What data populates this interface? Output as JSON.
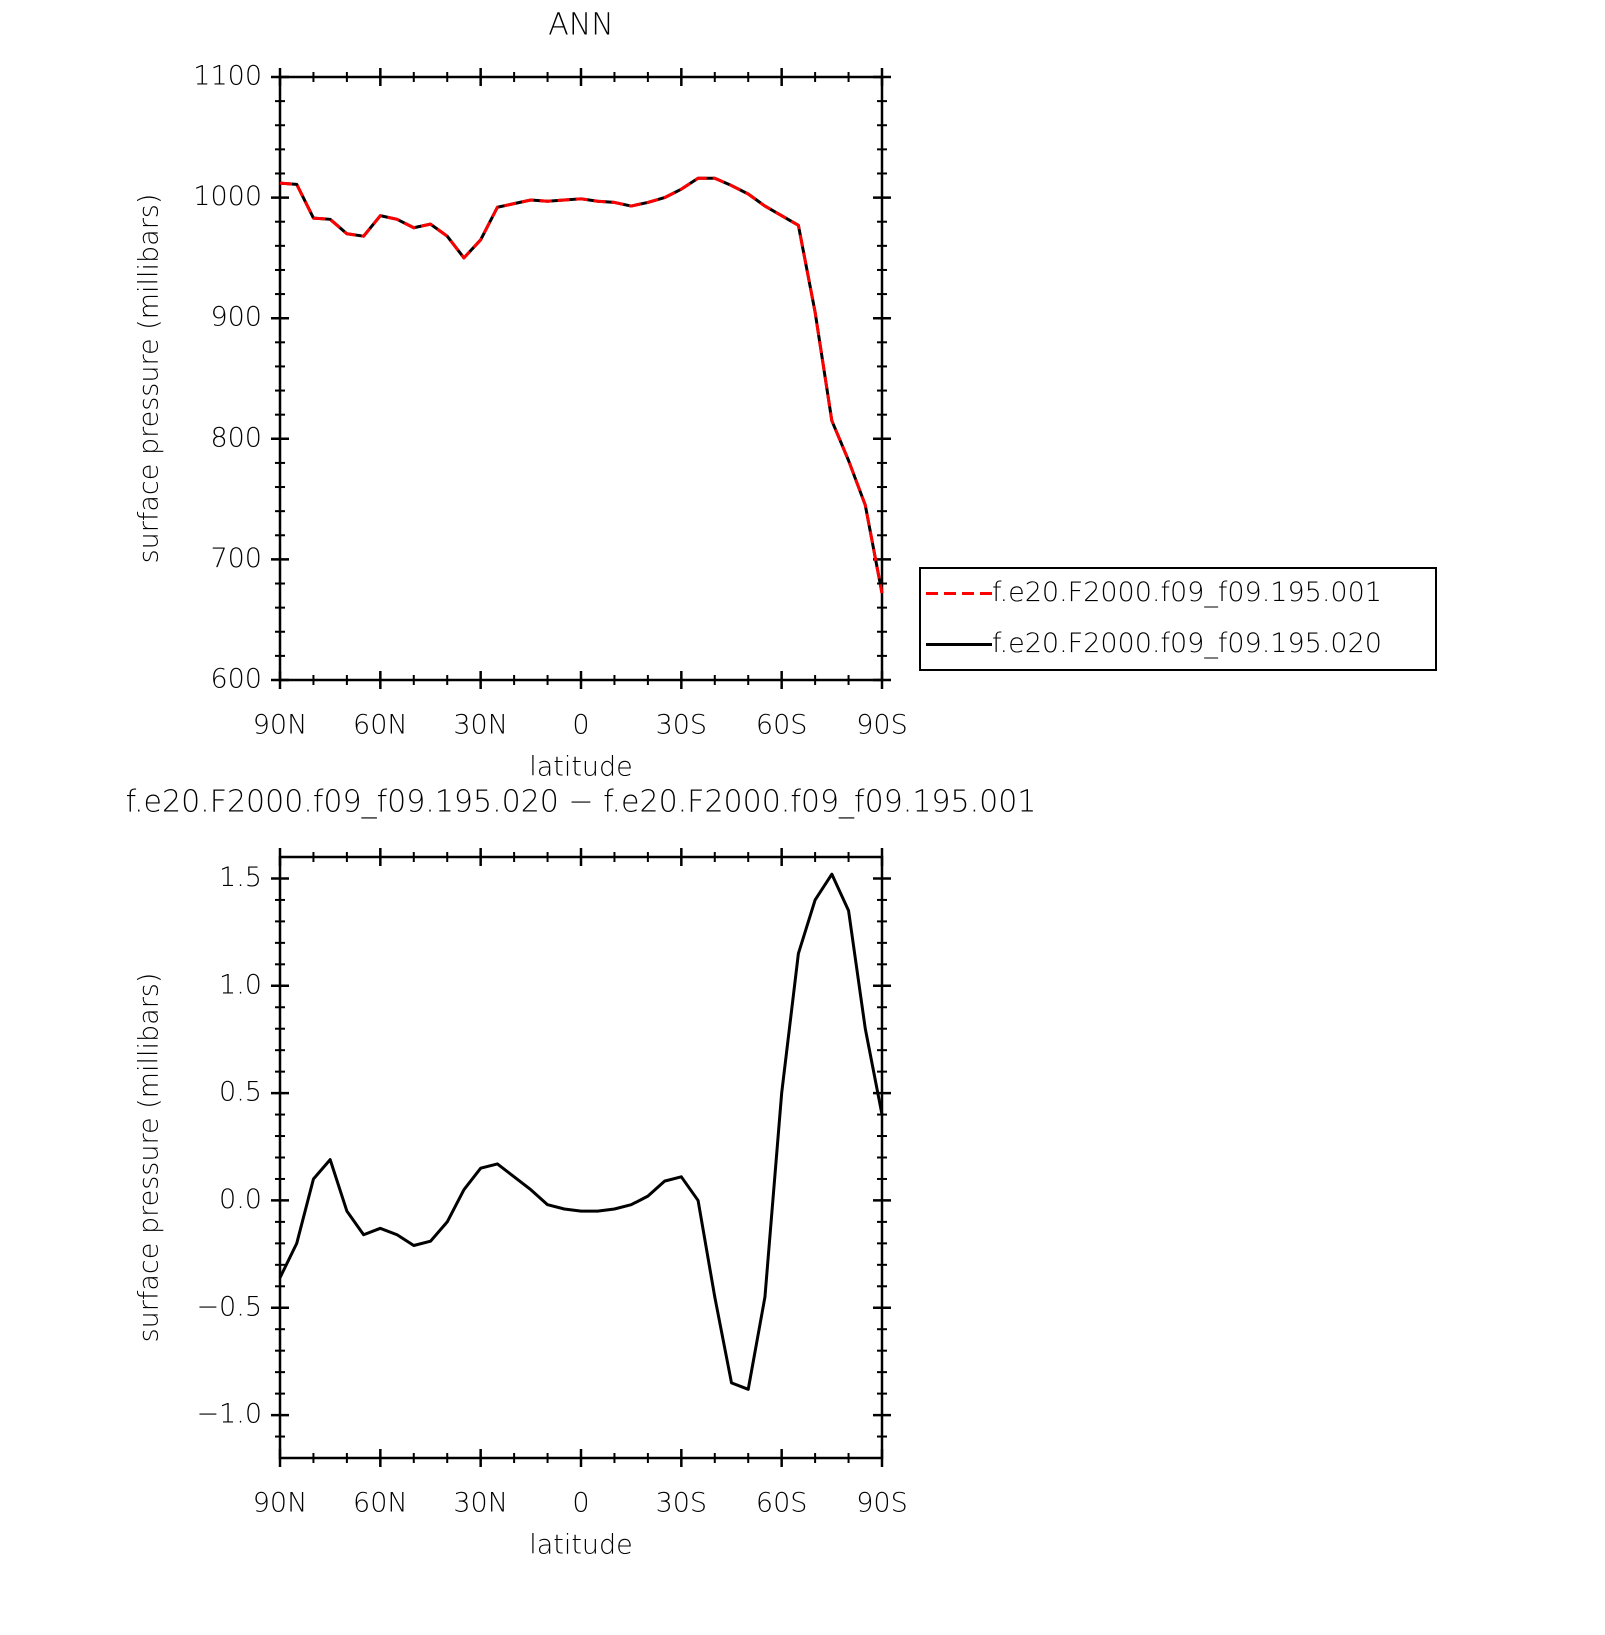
{
  "chart_data": [
    {
      "type": "line",
      "title": "ANN",
      "xlabel": "latitude",
      "ylabel": "surface pressure (millibars)",
      "x": [
        90,
        85,
        80,
        75,
        70,
        65,
        60,
        55,
        50,
        45,
        40,
        35,
        30,
        25,
        20,
        15,
        10,
        5,
        0,
        -5,
        -10,
        -15,
        -20,
        -25,
        -30,
        -35,
        -40,
        -45,
        -50,
        -55,
        -60,
        -65,
        -70,
        -75,
        -80,
        -85,
        -90
      ],
      "series": [
        {
          "name": "f.e20.F2000.f09_f09.195.001",
          "color": "#ff0000",
          "linestyle": "dashed",
          "values": [
            1012,
            1011,
            983,
            982,
            970,
            968,
            985,
            982,
            975,
            978,
            968,
            950,
            965,
            992,
            995,
            998,
            997,
            998,
            999,
            997,
            996,
            993,
            996,
            1000,
            1007,
            1016,
            1016,
            1010,
            1003,
            993,
            985,
            977,
            905,
            815,
            782,
            745,
            672
          ]
        },
        {
          "name": "f.e20.F2000.f09_f09.195.020",
          "color": "#000000",
          "linestyle": "solid",
          "values": [
            1012,
            1011,
            983,
            982,
            970,
            968,
            985,
            982,
            975,
            978,
            968,
            950,
            965,
            992,
            995,
            998,
            997,
            998,
            999,
            997,
            996,
            993,
            996,
            1000,
            1007,
            1016,
            1016,
            1010,
            1003,
            993,
            985,
            977,
            905,
            815,
            782,
            745,
            672
          ]
        }
      ],
      "xlim": [
        90,
        -90
      ],
      "xticks": [
        {
          "value": 90,
          "label": "90N"
        },
        {
          "value": 60,
          "label": "60N"
        },
        {
          "value": 30,
          "label": "30N"
        },
        0,
        {
          "value": -30,
          "label": "30S"
        },
        {
          "value": -60,
          "label": "60S"
        },
        {
          "value": -90,
          "label": "90S"
        }
      ],
      "xminor": [
        80,
        70,
        50,
        40,
        20,
        10,
        -10,
        -20,
        -40,
        -50,
        -70,
        -80
      ],
      "ylim": [
        600,
        1100
      ],
      "yticks": [
        600,
        700,
        800,
        900,
        1000,
        1100
      ],
      "yminor": [
        620,
        640,
        660,
        680,
        720,
        740,
        760,
        780,
        820,
        840,
        860,
        880,
        920,
        940,
        960,
        980,
        1020,
        1040,
        1060,
        1080
      ],
      "legend": "right"
    },
    {
      "type": "line",
      "title": "f.e20.F2000.f09_f09.195.020 − f.e20.F2000.f09_f09.195.001",
      "xlabel": "latitude",
      "ylabel": "surface pressure (millibars)",
      "x": [
        90,
        85,
        80,
        75,
        70,
        65,
        60,
        55,
        50,
        45,
        40,
        35,
        30,
        25,
        20,
        15,
        10,
        5,
        0,
        -5,
        -10,
        -15,
        -20,
        -25,
        -30,
        -35,
        -40,
        -45,
        -50,
        -55,
        -60,
        -65,
        -70,
        -75,
        -80,
        -85,
        -90
      ],
      "series": [
        {
          "color": "#000000",
          "linestyle": "solid",
          "values": [
            -0.36,
            -0.2,
            0.1,
            0.19,
            -0.05,
            -0.16,
            -0.13,
            -0.16,
            -0.21,
            -0.19,
            -0.1,
            0.05,
            0.15,
            0.17,
            0.11,
            0.05,
            -0.02,
            -0.04,
            -0.05,
            -0.05,
            -0.04,
            -0.02,
            0.02,
            0.09,
            0.11,
            0.0,
            -0.45,
            -0.85,
            -0.88,
            -0.45,
            0.5,
            1.15,
            1.4,
            1.52,
            1.35,
            0.8,
            0.4
          ]
        }
      ],
      "xlim": [
        90,
        -90
      ],
      "xticks": [
        {
          "value": 90,
          "label": "90N"
        },
        {
          "value": 60,
          "label": "60N"
        },
        {
          "value": 30,
          "label": "30N"
        },
        0,
        {
          "value": -30,
          "label": "30S"
        },
        {
          "value": -60,
          "label": "60S"
        },
        {
          "value": -90,
          "label": "90S"
        }
      ],
      "xminor": [
        80,
        70,
        50,
        40,
        20,
        10,
        -10,
        -20,
        -40,
        -50,
        -70,
        -80
      ],
      "ylim": [
        -1.2,
        1.6
      ],
      "yticks": [
        {
          "value": -1.0,
          "label": "−1.0"
        },
        {
          "value": -0.5,
          "label": "−0.5"
        },
        {
          "value": 0,
          "label": "0.0"
        },
        {
          "value": 0.5,
          "label": "0.5"
        },
        {
          "value": 1.0,
          "label": "1.0"
        },
        {
          "value": 1.5,
          "label": "1.5"
        }
      ],
      "yminor": [
        -1.1,
        -0.9,
        -0.8,
        -0.7,
        -0.6,
        -0.4,
        -0.3,
        -0.2,
        -0.1,
        0.1,
        0.2,
        0.3,
        0.4,
        0.6,
        0.7,
        0.8,
        0.9,
        1.1,
        1.2,
        1.3,
        1.4
      ]
    }
  ]
}
